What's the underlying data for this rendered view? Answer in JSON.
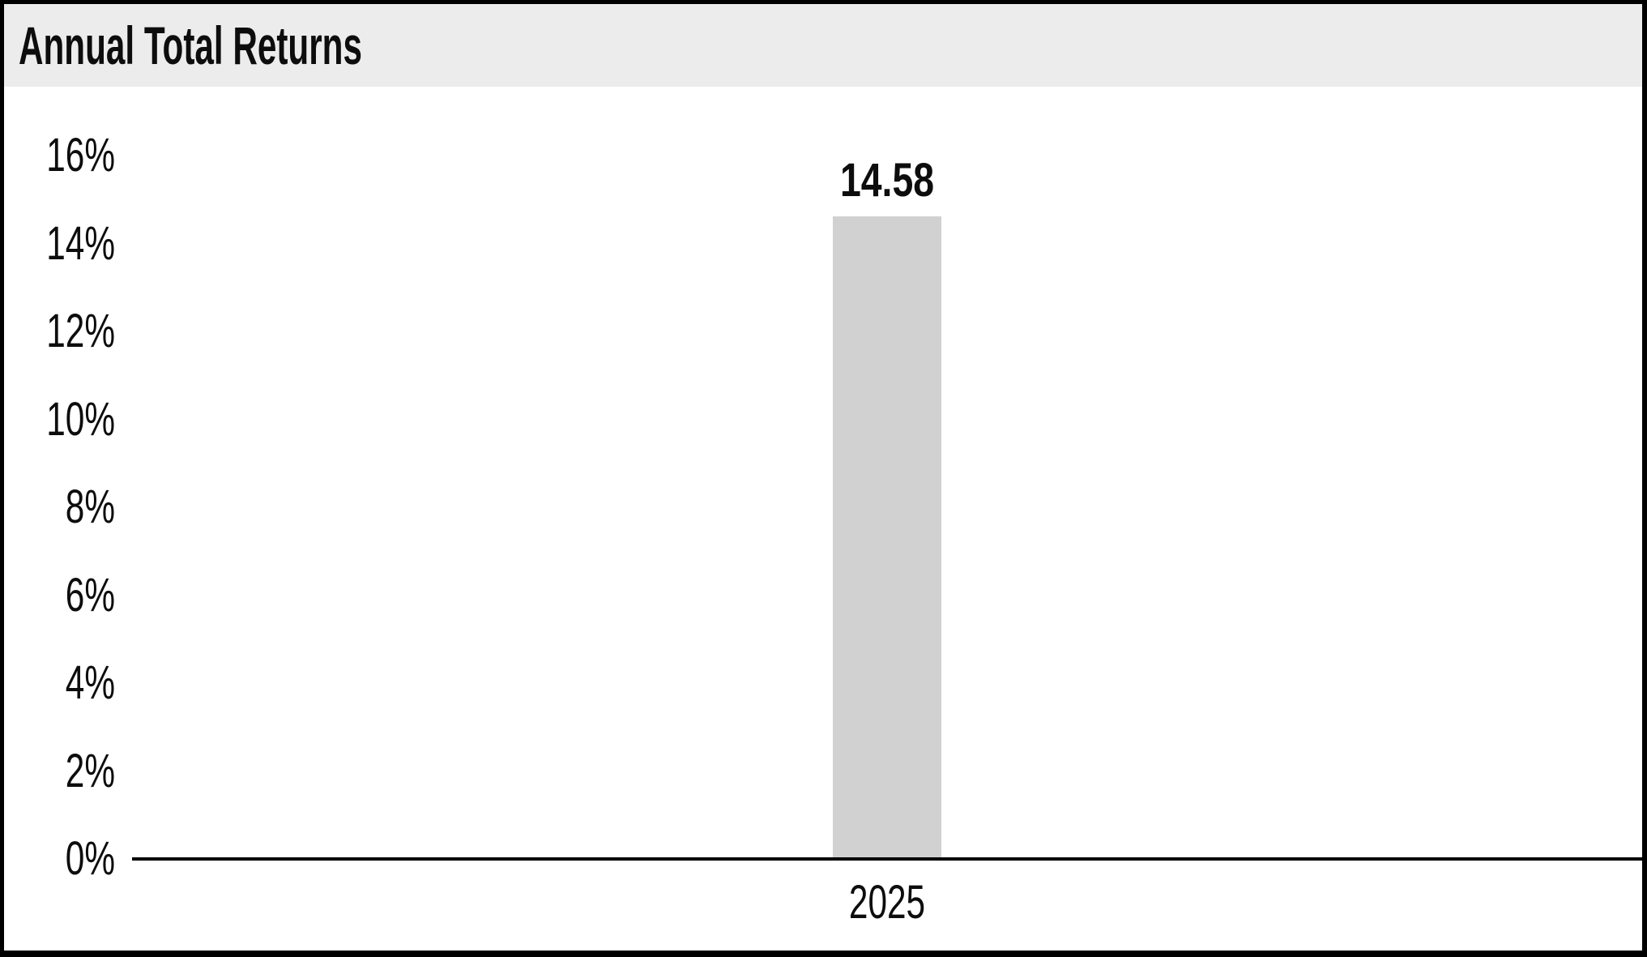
{
  "title": "Annual Total Returns",
  "colors": {
    "header_bg": "#ececec",
    "bar_fill": "#d1d1d1",
    "text": "#0d0d0d",
    "axis": "#000000",
    "frame": "#000000",
    "plot_bg": "#ffffff"
  },
  "chart_data": {
    "type": "bar",
    "title": "Annual Total Returns",
    "categories": [
      "2025"
    ],
    "values": [
      14.58
    ],
    "value_labels": [
      "14.58"
    ],
    "xlabel": "",
    "ylabel": "",
    "ylim": [
      0,
      16
    ],
    "ytick_step": 2,
    "ytick_labels": [
      "0%",
      "2%",
      "4%",
      "6%",
      "8%",
      "10%",
      "12%",
      "14%",
      "16%"
    ],
    "grid": false,
    "legend": null,
    "bar_color": "#d1d1d1"
  }
}
